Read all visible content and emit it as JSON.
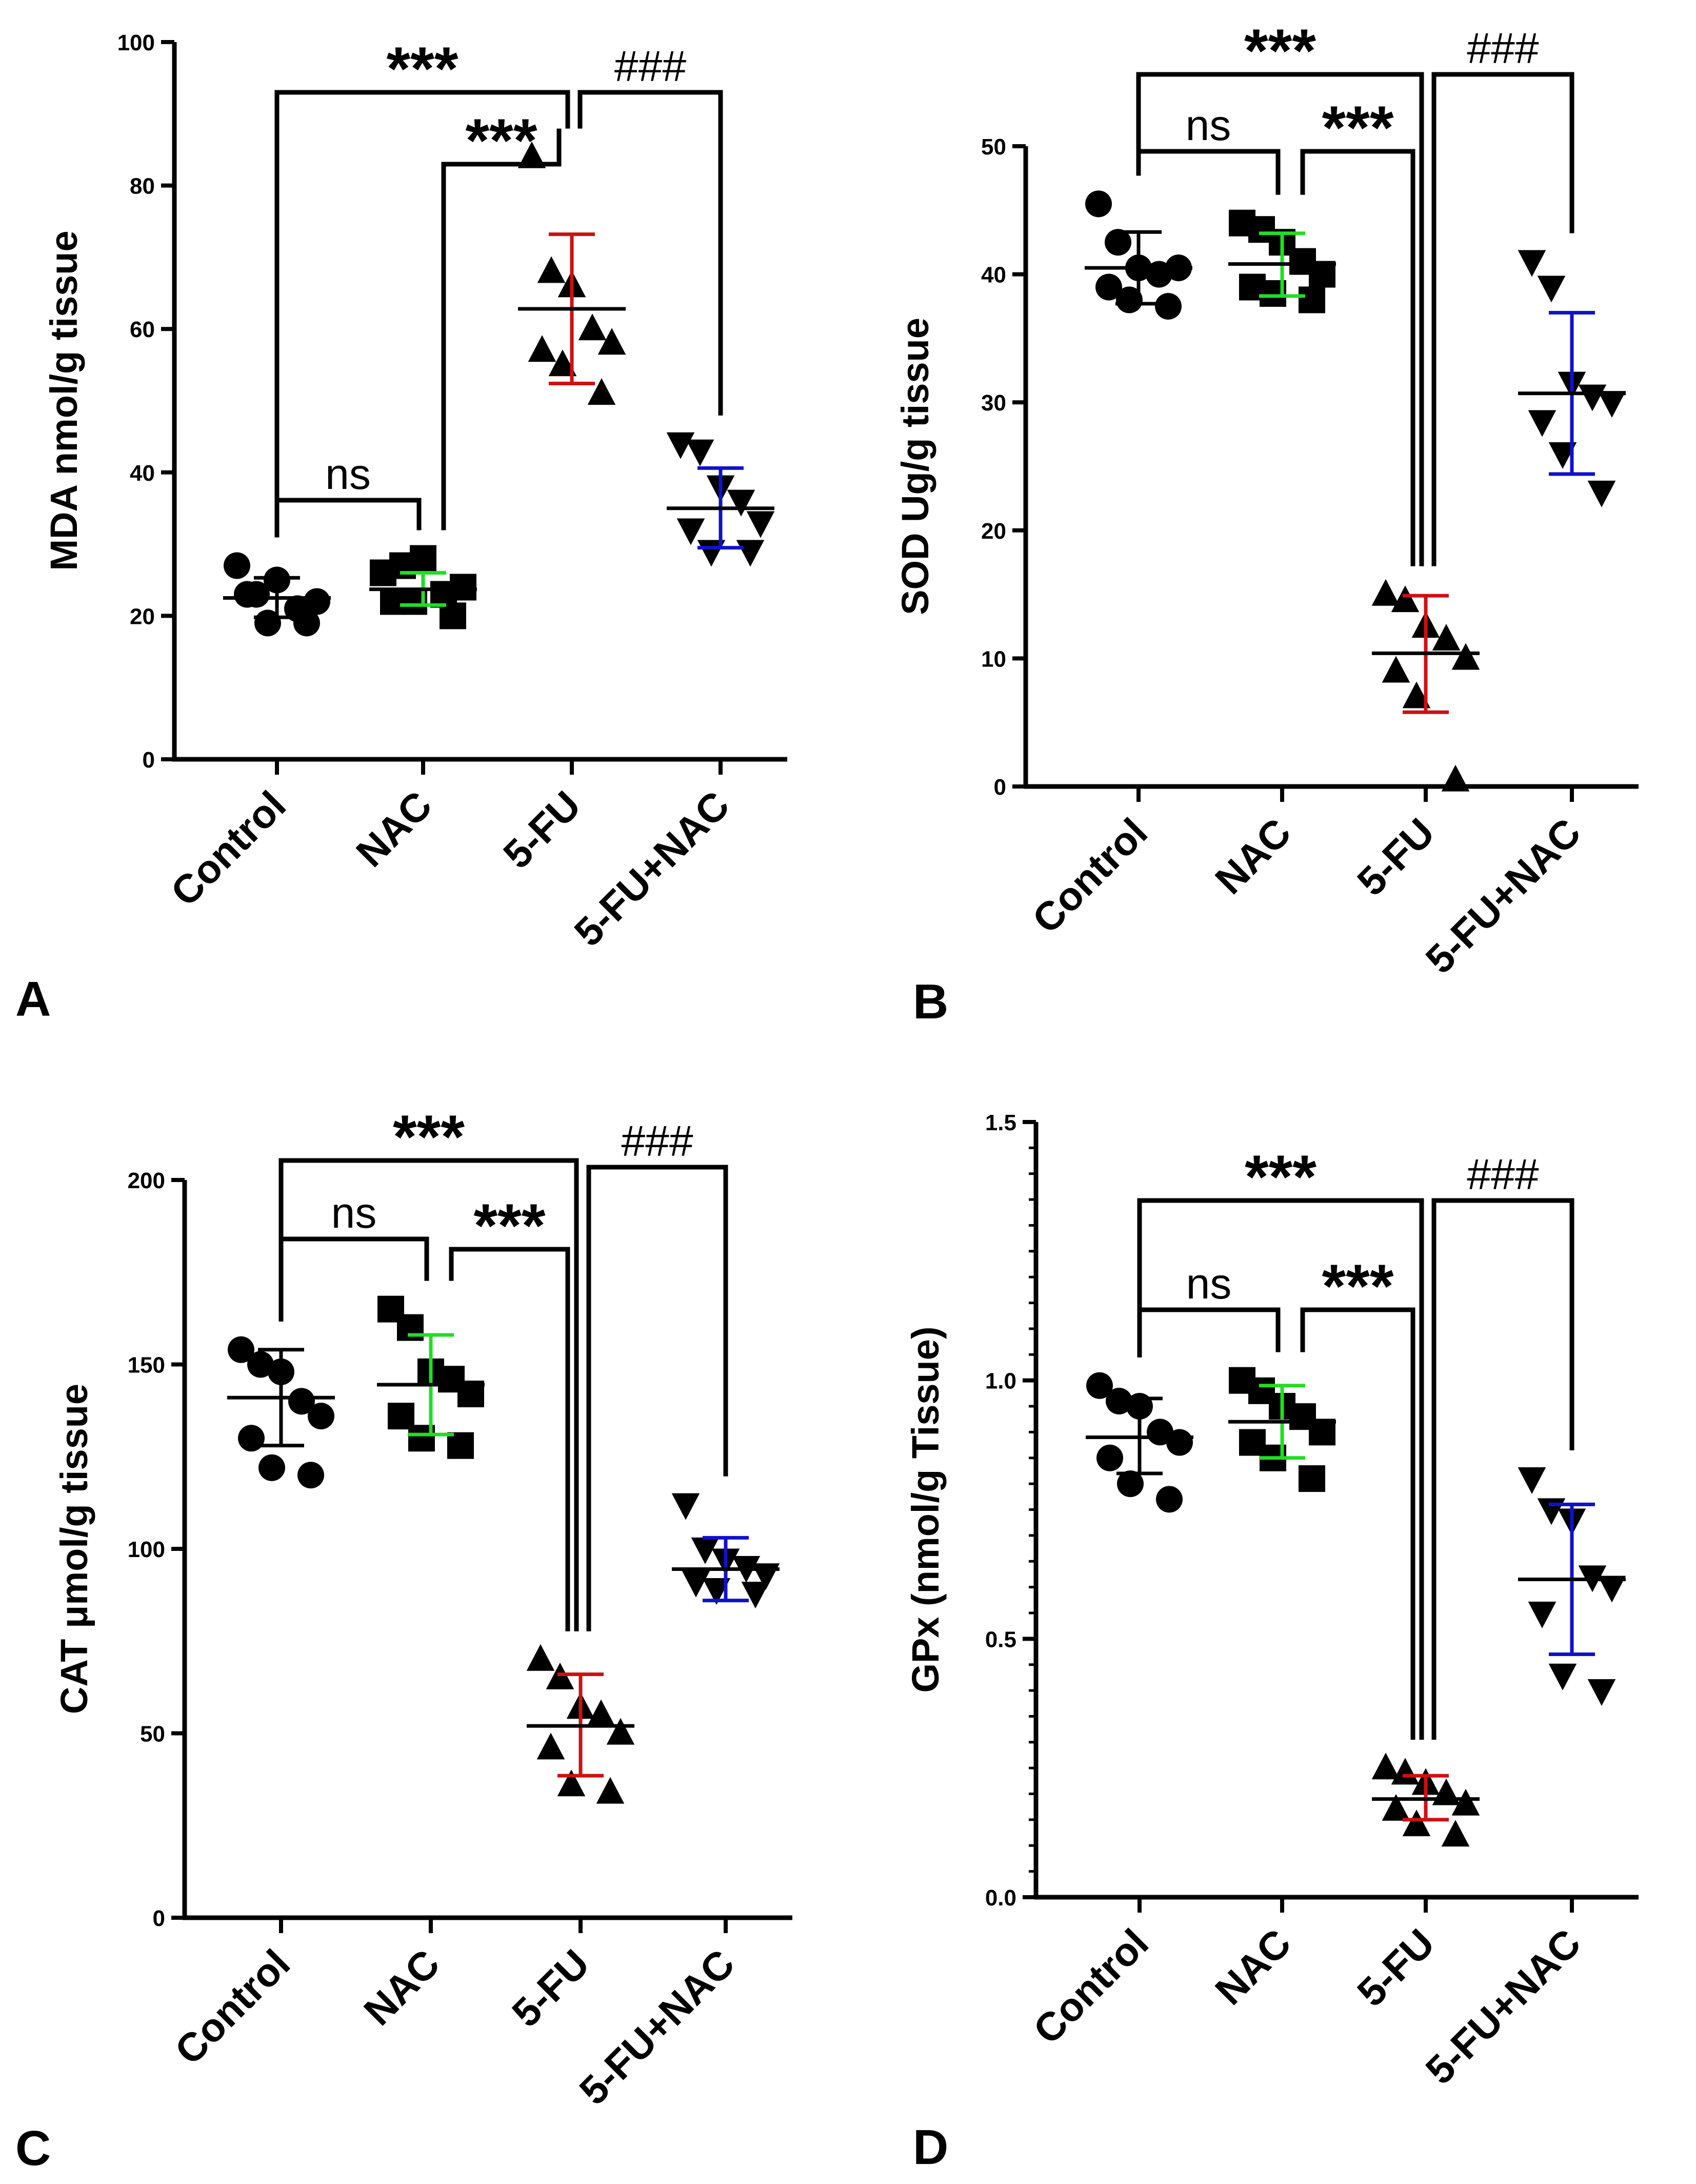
{
  "figure": {
    "panels": [
      "A",
      "B",
      "C",
      "D"
    ]
  },
  "colors": {
    "axis": "#000000",
    "control_bar": "#000000",
    "nac_bar": "#22dd22",
    "fu_bar": "#cc1111",
    "fu_nac_bar": "#1111cc"
  },
  "chart_data": [
    {
      "panel": "A",
      "type": "scatter",
      "ylabel": "MDA nmol/g tissue",
      "ylim": [
        0,
        100
      ],
      "yticks": [
        0,
        20,
        40,
        60,
        80,
        100
      ],
      "categories": [
        "Control",
        "NAC",
        "5-FU",
        "5-FU+NAC"
      ],
      "groups": [
        {
          "name": "Control",
          "marker": "circle",
          "mean": 22.5,
          "sd_low": 19.8,
          "sd_high": 25.3,
          "values": [
            27,
            23,
            25,
            21,
            22,
            23,
            19,
            19
          ]
        },
        {
          "name": "NAC",
          "marker": "square",
          "mean": 23.7,
          "sd_low": 21.5,
          "sd_high": 26.0,
          "values": [
            26,
            27,
            28,
            23,
            24,
            22,
            22,
            20
          ]
        },
        {
          "name": "5-FU",
          "marker": "triangle-up",
          "mean": 62.8,
          "sd_low": 52.4,
          "sd_high": 73.2,
          "values": [
            84,
            68,
            66,
            60,
            58,
            57,
            55,
            51
          ]
        },
        {
          "name": "5-FU+NAC",
          "marker": "triangle-down",
          "mean": 35.0,
          "sd_low": 29.5,
          "sd_high": 40.6,
          "values": [
            44,
            43,
            38,
            36,
            33,
            32,
            29,
            29
          ]
        }
      ],
      "comparisons": [
        {
          "from": "Control",
          "to": "5-FU",
          "label": "***"
        },
        {
          "from": "5-FU",
          "to": "5-FU+NAC",
          "label": "###"
        },
        {
          "from": "NAC",
          "to": "5-FU",
          "label": "***"
        },
        {
          "from": "Control",
          "to": "NAC",
          "label": "ns"
        }
      ]
    },
    {
      "panel": "B",
      "type": "scatter",
      "ylabel": "SOD Ug/g tissue",
      "ylim": [
        0,
        50
      ],
      "yticks": [
        0,
        10,
        20,
        30,
        40,
        50
      ],
      "categories": [
        "Control",
        "NAC",
        "5-FU",
        "5-FU+NAC"
      ],
      "groups": [
        {
          "name": "Control",
          "marker": "circle",
          "mean": 40.5,
          "sd_low": 37.7,
          "sd_high": 43.3,
          "values": [
            45.5,
            42.5,
            40.5,
            40.0,
            40.5,
            39.0,
            38.0,
            37.5
          ]
        },
        {
          "name": "NAC",
          "marker": "square",
          "mean": 40.8,
          "sd_low": 38.3,
          "sd_high": 43.2,
          "values": [
            44.0,
            43.5,
            42.5,
            41.0,
            40.0,
            39.0,
            38.5,
            38.0
          ]
        },
        {
          "name": "5-FU",
          "marker": "triangle-up",
          "mean": 10.4,
          "sd_low": 5.8,
          "sd_high": 14.9,
          "values": [
            15.0,
            14.5,
            12.5,
            11.5,
            10.0,
            9.0,
            7.0,
            0.5
          ]
        },
        {
          "name": "5-FU+NAC",
          "marker": "triangle-down",
          "mean": 30.7,
          "sd_low": 24.4,
          "sd_high": 37.0,
          "values": [
            41.0,
            39.0,
            31.5,
            30.5,
            30.0,
            28.5,
            26.0,
            23.0
          ]
        }
      ],
      "comparisons": [
        {
          "from": "Control",
          "to": "5-FU",
          "label": "***"
        },
        {
          "from": "5-FU",
          "to": "5-FU+NAC",
          "label": "###"
        },
        {
          "from": "NAC",
          "to": "5-FU",
          "label": "***"
        },
        {
          "from": "Control",
          "to": "NAC",
          "label": "ns"
        }
      ]
    },
    {
      "panel": "C",
      "type": "scatter",
      "ylabel": "CAT μmol/g tissue",
      "ylim": [
        0,
        200
      ],
      "yticks": [
        0,
        50,
        100,
        150,
        200
      ],
      "categories": [
        "Control",
        "NAC",
        "5-FU",
        "5-FU+NAC"
      ],
      "groups": [
        {
          "name": "Control",
          "marker": "circle",
          "mean": 141,
          "sd_low": 128,
          "sd_high": 154,
          "values": [
            154,
            150,
            148,
            140,
            136,
            130,
            122,
            120
          ]
        },
        {
          "name": "NAC",
          "marker": "square",
          "mean": 144.5,
          "sd_low": 131,
          "sd_high": 158,
          "values": [
            165,
            160,
            148,
            146,
            142,
            136,
            130,
            128
          ]
        },
        {
          "name": "5-FU",
          "marker": "triangle-up",
          "mean": 52,
          "sd_low": 38.5,
          "sd_high": 66,
          "values": [
            70,
            65,
            57,
            55,
            50,
            46,
            36,
            34
          ]
        },
        {
          "name": "5-FU+NAC",
          "marker": "triangle-down",
          "mean": 94.5,
          "sd_low": 86,
          "sd_high": 103,
          "values": [
            112,
            100,
            97,
            95,
            93,
            91,
            89,
            88
          ]
        }
      ],
      "comparisons": [
        {
          "from": "Control",
          "to": "5-FU",
          "label": "***"
        },
        {
          "from": "5-FU",
          "to": "5-FU+NAC",
          "label": "###"
        },
        {
          "from": "NAC",
          "to": "5-FU",
          "label": "***"
        },
        {
          "from": "Control",
          "to": "NAC",
          "label": "ns"
        }
      ]
    },
    {
      "panel": "D",
      "type": "scatter",
      "ylabel": "GPx (nmol/g Tissue)",
      "ylim": [
        0,
        1.5
      ],
      "yticks": [
        0.0,
        0.5,
        1.0,
        1.5
      ],
      "ytick_labels": [
        "0.0",
        "0.5",
        "1.0",
        "1.5"
      ],
      "minor_ticks": 0.05,
      "categories": [
        "Control",
        "NAC",
        "5-FU",
        "5-FU+NAC"
      ],
      "groups": [
        {
          "name": "Control",
          "marker": "circle",
          "mean": 0.89,
          "sd_low": 0.82,
          "sd_high": 0.965,
          "values": [
            0.99,
            0.96,
            0.95,
            0.9,
            0.88,
            0.85,
            0.8,
            0.77
          ]
        },
        {
          "name": "NAC",
          "marker": "square",
          "mean": 0.92,
          "sd_low": 0.85,
          "sd_high": 0.99,
          "values": [
            1.0,
            0.98,
            0.95,
            0.93,
            0.9,
            0.88,
            0.85,
            0.81
          ]
        },
        {
          "name": "5-FU",
          "marker": "triangle-up",
          "mean": 0.19,
          "sd_low": 0.15,
          "sd_high": 0.235,
          "values": [
            0.25,
            0.24,
            0.22,
            0.2,
            0.18,
            0.17,
            0.14,
            0.12
          ]
        },
        {
          "name": "5-FU+NAC",
          "marker": "triangle-down",
          "mean": 0.615,
          "sd_low": 0.47,
          "sd_high": 0.76,
          "values": [
            0.81,
            0.75,
            0.73,
            0.62,
            0.6,
            0.55,
            0.43,
            0.4
          ]
        }
      ],
      "comparisons": [
        {
          "from": "Control",
          "to": "5-FU",
          "label": "***"
        },
        {
          "from": "5-FU",
          "to": "5-FU+NAC",
          "label": "###"
        },
        {
          "from": "NAC",
          "to": "5-FU",
          "label": "***"
        },
        {
          "from": "Control",
          "to": "NAC",
          "label": "ns"
        }
      ]
    }
  ]
}
